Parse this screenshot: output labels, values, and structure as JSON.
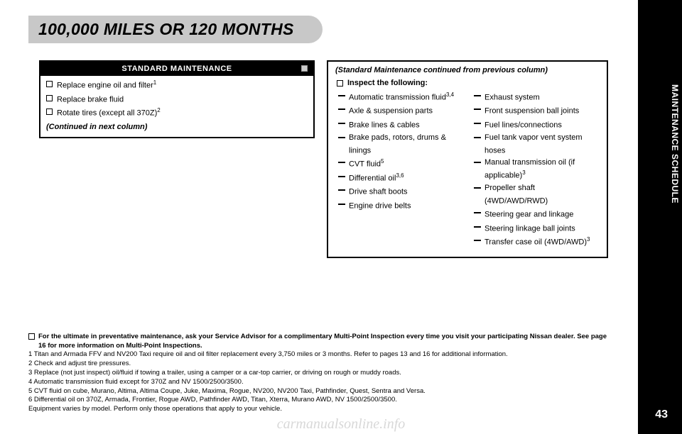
{
  "sideLabel": "MAINTENANCE SCHEDULE",
  "pageNumber": "43",
  "watermark": "carmanualsonline.info",
  "title": "100,000 MILES OR 120 MONTHS",
  "leftBox": {
    "header": "STANDARD MAINTENANCE",
    "items": [
      {
        "text": "Replace engine oil and filter",
        "sup": "1"
      },
      {
        "text": "Replace brake fluid",
        "sup": ""
      },
      {
        "text": "Rotate tires (except all 370Z)",
        "sup": "2"
      }
    ],
    "continued": "(Continued in next column)"
  },
  "rightBox": {
    "contHead": "(Standard Maintenance continued from previous column)",
    "inspectLabel": "Inspect the following:",
    "col1": [
      {
        "text": "Automatic transmission fluid",
        "sup": "3,4"
      },
      {
        "text": "Axle & suspension parts",
        "sup": ""
      },
      {
        "text": "Brake lines & cables",
        "sup": ""
      },
      {
        "text": "Brake pads, rotors, drums & linings",
        "sup": ""
      },
      {
        "text": "CVT fluid",
        "sup": "5"
      },
      {
        "text": "Differential oil",
        "sup": "3,6"
      },
      {
        "text": "Drive shaft boots",
        "sup": ""
      },
      {
        "text": "Engine drive belts",
        "sup": ""
      }
    ],
    "col2": [
      {
        "text": "Exhaust system",
        "sup": ""
      },
      {
        "text": "Front suspension ball joints",
        "sup": ""
      },
      {
        "text": "Fuel lines/connections",
        "sup": ""
      },
      {
        "text": "Fuel tank vapor vent system hoses",
        "sup": ""
      },
      {
        "text": "Manual transmission oil (if applicable)",
        "sup": "3"
      },
      {
        "text": "Propeller shaft (4WD/AWD/RWD)",
        "sup": ""
      },
      {
        "text": "Steering gear and linkage",
        "sup": ""
      },
      {
        "text": "Steering linkage ball joints",
        "sup": ""
      },
      {
        "text": "Transfer case oil (4WD/AWD)",
        "sup": "3"
      }
    ]
  },
  "footnotes": {
    "lead": "For the ultimate in preventative maintenance, ask your Service Advisor for a complimentary Multi-Point Inspection every time you visit your participating Nissan dealer. See page 16 for more information on Multi-Point Inspections.",
    "lines": [
      "1 Titan and Armada FFV and NV200 Taxi require oil and oil filter replacement every 3,750 miles or 3 months. Refer to pages 13 and 16 for additional information.",
      "2 Check and adjust tire pressures.",
      "3 Replace (not just inspect) oil/fluid if towing a trailer, using a camper or a car-top carrier, or driving on rough or muddy roads.",
      "4 Automatic transmission fluid except for 370Z and NV 1500/2500/3500.",
      "5 CVT fluid on cube, Murano, Altima, Altima Coupe, Juke, Maxima, Rogue, NV200, NV200 Taxi, Pathfinder, Quest, Sentra and Versa.",
      "6 Differential oil on 370Z, Armada, Frontier, Rogue AWD, Pathfinder AWD, Titan, Xterra, Murano AWD, NV 1500/2500/3500.",
      "Equipment varies by model. Perform only those operations that apply to your vehicle."
    ]
  }
}
